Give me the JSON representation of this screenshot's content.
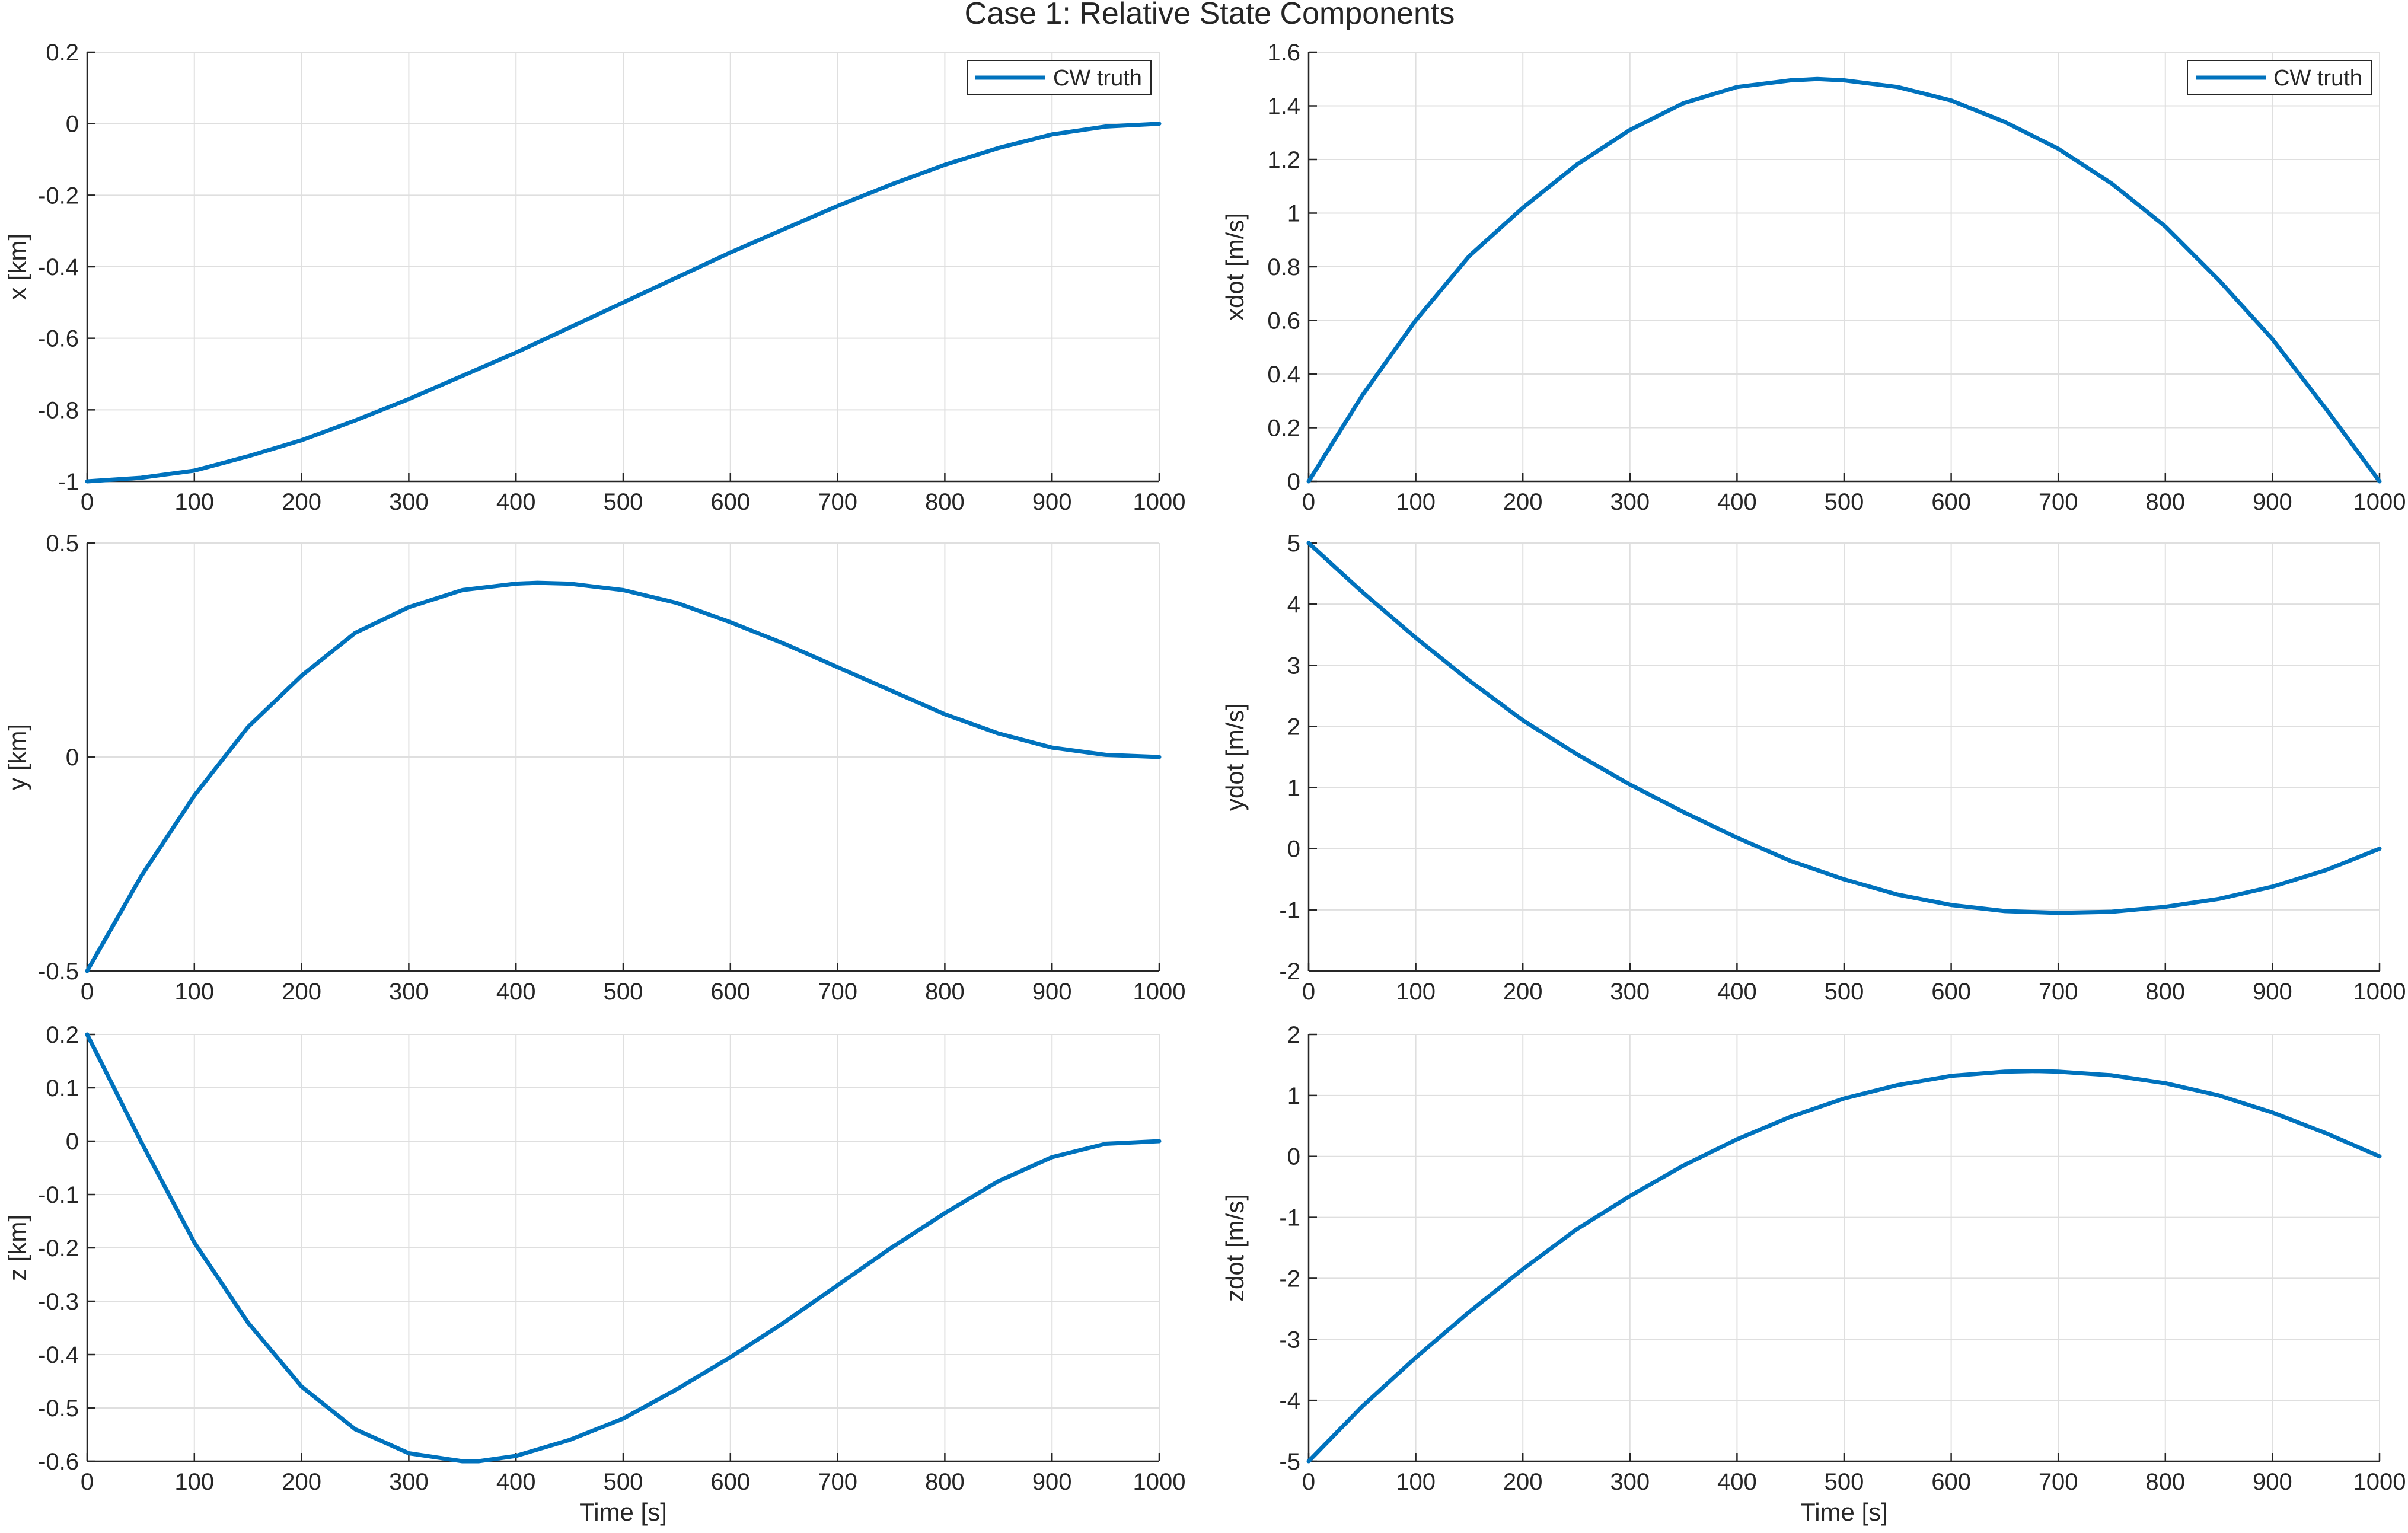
{
  "figure": {
    "title": "Case 1: Relative State Components",
    "series_color": "#0072BD"
  },
  "chart_data": [
    {
      "id": "x",
      "type": "line",
      "ylabel": "x [km]",
      "xlabel": "",
      "xlim": [
        0,
        1000
      ],
      "ylim": [
        -1,
        0.2
      ],
      "xticks": [
        0,
        100,
        200,
        300,
        400,
        500,
        600,
        700,
        800,
        900,
        1000
      ],
      "yticks": [
        -1,
        -0.8,
        -0.6,
        -0.4,
        -0.2,
        0,
        0.2
      ],
      "yticklabels": [
        "-1",
        "-0.8",
        "-0.6",
        "-0.4",
        "-0.2",
        "0",
        "0.2"
      ],
      "grid": true,
      "legend": {
        "entries": [
          "CW truth"
        ],
        "location": "top-right"
      },
      "series": [
        {
          "name": "CW truth",
          "x": [
            0,
            50,
            100,
            150,
            200,
            250,
            300,
            350,
            400,
            450,
            500,
            550,
            600,
            650,
            700,
            750,
            800,
            850,
            900,
            950,
            1000
          ],
          "y": [
            -1.0,
            -0.99,
            -0.97,
            -0.93,
            -0.885,
            -0.83,
            -0.77,
            -0.705,
            -0.64,
            -0.57,
            -0.5,
            -0.43,
            -0.36,
            -0.295,
            -0.23,
            -0.17,
            -0.115,
            -0.068,
            -0.03,
            -0.008,
            0.0
          ]
        }
      ]
    },
    {
      "id": "xdot",
      "type": "line",
      "ylabel": "xdot [m/s]",
      "xlabel": "",
      "xlim": [
        0,
        1000
      ],
      "ylim": [
        0,
        1.6
      ],
      "xticks": [
        0,
        100,
        200,
        300,
        400,
        500,
        600,
        700,
        800,
        900,
        1000
      ],
      "yticks": [
        0,
        0.2,
        0.4,
        0.6,
        0.8,
        1,
        1.2,
        1.4,
        1.6
      ],
      "yticklabels": [
        "0",
        "0.2",
        "0.4",
        "0.6",
        "0.8",
        "1",
        "1.2",
        "1.4",
        "1.6"
      ],
      "grid": true,
      "legend": {
        "entries": [
          "CW truth"
        ],
        "location": "top-right"
      },
      "series": [
        {
          "name": "CW truth",
          "x": [
            0,
            50,
            100,
            150,
            200,
            250,
            300,
            350,
            400,
            450,
            475,
            500,
            550,
            600,
            650,
            700,
            750,
            800,
            850,
            900,
            950,
            1000
          ],
          "y": [
            0.0,
            0.32,
            0.6,
            0.84,
            1.02,
            1.18,
            1.31,
            1.41,
            1.47,
            1.495,
            1.5,
            1.495,
            1.47,
            1.42,
            1.34,
            1.24,
            1.11,
            0.95,
            0.75,
            0.53,
            0.27,
            0.0
          ]
        }
      ]
    },
    {
      "id": "y",
      "type": "line",
      "ylabel": "y [km]",
      "xlabel": "",
      "xlim": [
        0,
        1000
      ],
      "ylim": [
        -0.5,
        0.5
      ],
      "xticks": [
        0,
        100,
        200,
        300,
        400,
        500,
        600,
        700,
        800,
        900,
        1000
      ],
      "yticks": [
        -0.5,
        0,
        0.5
      ],
      "yticklabels": [
        "-0.5",
        "0",
        "0.5"
      ],
      "grid": true,
      "series": [
        {
          "name": "CW truth",
          "x": [
            0,
            50,
            100,
            150,
            200,
            250,
            300,
            350,
            400,
            420,
            450,
            500,
            550,
            600,
            650,
            700,
            750,
            800,
            850,
            900,
            950,
            1000
          ],
          "y": [
            -0.5,
            -0.28,
            -0.09,
            0.07,
            0.19,
            0.29,
            0.35,
            0.39,
            0.405,
            0.407,
            0.405,
            0.39,
            0.36,
            0.315,
            0.265,
            0.21,
            0.155,
            0.1,
            0.055,
            0.022,
            0.005,
            0.0
          ]
        }
      ]
    },
    {
      "id": "ydot",
      "type": "line",
      "ylabel": "ydot [m/s]",
      "xlabel": "",
      "xlim": [
        0,
        1000
      ],
      "ylim": [
        -2,
        5
      ],
      "xticks": [
        0,
        100,
        200,
        300,
        400,
        500,
        600,
        700,
        800,
        900,
        1000
      ],
      "yticks": [
        -2,
        -1,
        0,
        1,
        2,
        3,
        4,
        5
      ],
      "yticklabels": [
        "-2",
        "-1",
        "0",
        "1",
        "2",
        "3",
        "4",
        "5"
      ],
      "grid": true,
      "series": [
        {
          "name": "CW truth",
          "x": [
            0,
            50,
            100,
            150,
            200,
            250,
            300,
            350,
            400,
            450,
            500,
            550,
            600,
            650,
            700,
            750,
            800,
            850,
            900,
            950,
            1000
          ],
          "y": [
            5.0,
            4.2,
            3.45,
            2.75,
            2.1,
            1.55,
            1.05,
            0.6,
            0.18,
            -0.2,
            -0.5,
            -0.75,
            -0.92,
            -1.02,
            -1.05,
            -1.03,
            -0.95,
            -0.82,
            -0.62,
            -0.35,
            0.0
          ]
        }
      ]
    },
    {
      "id": "z",
      "type": "line",
      "ylabel": "z [km]",
      "xlabel": "Time [s]",
      "xlim": [
        0,
        1000
      ],
      "ylim": [
        -0.6,
        0.2
      ],
      "xticks": [
        0,
        100,
        200,
        300,
        400,
        500,
        600,
        700,
        800,
        900,
        1000
      ],
      "yticks": [
        -0.6,
        -0.5,
        -0.4,
        -0.3,
        -0.2,
        -0.1,
        0,
        0.1,
        0.2
      ],
      "yticklabels": [
        "-0.6",
        "-0.5",
        "-0.4",
        "-0.3",
        "-0.2",
        "-0.1",
        "0",
        "0.1",
        "0.2"
      ],
      "grid": true,
      "series": [
        {
          "name": "CW truth",
          "x": [
            0,
            50,
            100,
            150,
            200,
            250,
            300,
            350,
            365,
            400,
            450,
            500,
            550,
            600,
            650,
            700,
            750,
            800,
            850,
            900,
            950,
            1000
          ],
          "y": [
            0.2,
            0.0,
            -0.19,
            -0.34,
            -0.46,
            -0.54,
            -0.585,
            -0.6,
            -0.6,
            -0.59,
            -0.56,
            -0.52,
            -0.465,
            -0.405,
            -0.34,
            -0.27,
            -0.2,
            -0.135,
            -0.075,
            -0.03,
            -0.005,
            0.0
          ]
        }
      ]
    },
    {
      "id": "zdot",
      "type": "line",
      "ylabel": "zdot [m/s]",
      "xlabel": "Time [s]",
      "xlim": [
        0,
        1000
      ],
      "ylim": [
        -5,
        2
      ],
      "xticks": [
        0,
        100,
        200,
        300,
        400,
        500,
        600,
        700,
        800,
        900,
        1000
      ],
      "yticks": [
        -5,
        -4,
        -3,
        -2,
        -1,
        0,
        1,
        2
      ],
      "yticklabels": [
        "-5",
        "-4",
        "-3",
        "-2",
        "-1",
        "0",
        "1",
        "2"
      ],
      "grid": true,
      "series": [
        {
          "name": "CW truth",
          "x": [
            0,
            50,
            100,
            150,
            200,
            250,
            300,
            350,
            400,
            450,
            500,
            550,
            600,
            650,
            680,
            700,
            750,
            800,
            850,
            900,
            950,
            1000
          ],
          "y": [
            -5.0,
            -4.1,
            -3.3,
            -2.55,
            -1.85,
            -1.2,
            -0.65,
            -0.15,
            0.28,
            0.65,
            0.95,
            1.17,
            1.32,
            1.39,
            1.4,
            1.39,
            1.33,
            1.2,
            1.0,
            0.72,
            0.38,
            0.0
          ]
        }
      ]
    }
  ]
}
